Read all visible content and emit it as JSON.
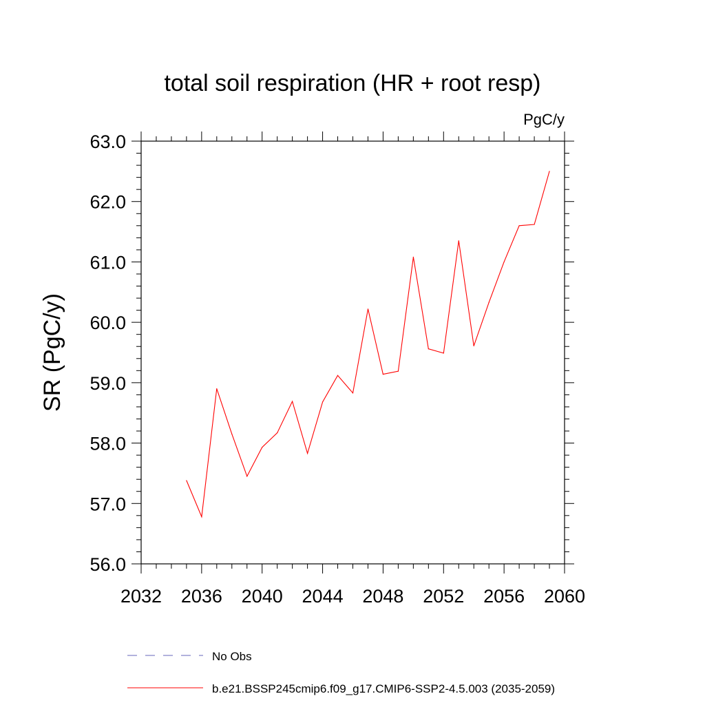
{
  "chart_data": {
    "type": "line",
    "title": "total soil respiration (HR + root resp)",
    "units_label": "PgC/y",
    "ylabel": "SR  (PgC/y)",
    "xlabel": "",
    "xlim": [
      2032,
      2060
    ],
    "ylim": [
      56.0,
      63.0
    ],
    "x_major_ticks": [
      2032,
      2036,
      2040,
      2044,
      2048,
      2052,
      2056,
      2060
    ],
    "y_major_ticks": [
      56.0,
      57.0,
      58.0,
      59.0,
      60.0,
      61.0,
      62.0,
      63.0
    ],
    "x_tick_labels": [
      "2032",
      "2036",
      "2040",
      "2044",
      "2048",
      "2052",
      "2056",
      "2060"
    ],
    "y_tick_labels": [
      "56.0",
      "57.0",
      "58.0",
      "59.0",
      "60.0",
      "61.0",
      "62.0",
      "63.0"
    ],
    "grid": false,
    "series": [
      {
        "name": "b.e21.BSSP245cmip6.f09_g17.CMIP6-SSP2-4.5.003 (2035-2059)",
        "color": "#ff0000",
        "x": [
          2035,
          2036,
          2037,
          2038,
          2039,
          2040,
          2041,
          2042,
          2043,
          2044,
          2045,
          2046,
          2047,
          2048,
          2049,
          2050,
          2051,
          2052,
          2053,
          2054,
          2055,
          2056,
          2057,
          2058,
          2059
        ],
        "y": [
          57.38,
          56.78,
          58.9,
          58.15,
          57.45,
          57.93,
          58.17,
          58.69,
          57.83,
          58.68,
          59.12,
          58.83,
          60.22,
          59.14,
          59.19,
          61.08,
          59.56,
          59.49,
          61.35,
          59.61,
          60.33,
          61.0,
          61.6,
          61.62,
          62.5
        ]
      }
    ],
    "legend": [
      {
        "label": "No Obs",
        "style": "dashed",
        "color": "#6666bb"
      },
      {
        "label": "b.e21.BSSP245cmip6.f09_g17.CMIP6-SSP2-4.5.003 (2035-2059)",
        "style": "solid",
        "color": "#ff0000"
      }
    ],
    "legend_position": "bottom"
  }
}
